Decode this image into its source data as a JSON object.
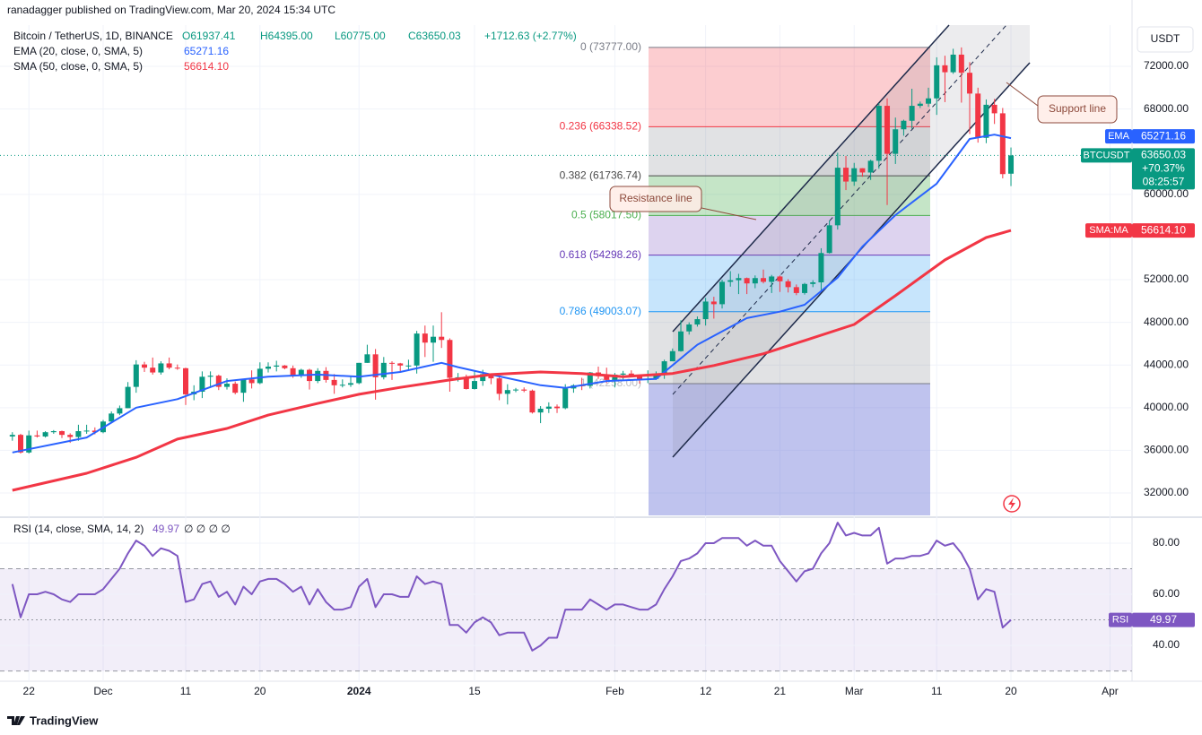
{
  "header": {
    "published": "ranadagger published on TradingView.com, Mar 20, 2024 15:34 UTC",
    "symbol": "Bitcoin / TetherUS, 1D, BINANCE",
    "open": "O61937.41",
    "high": "H64395.00",
    "low": "L60775.00",
    "close": "C63650.03",
    "change": "+1712.63 (+2.77%)",
    "ema_legend": "EMA (20, close, 0, SMA, 5)",
    "ema_value": "65271.16",
    "sma_legend": "SMA (50, close, 0, SMA, 5)",
    "sma_value": "56614.10",
    "rsi_legend": "RSI (14, close, SMA, 14, 2)",
    "rsi_value": "49.97",
    "rsi_extra": "∅ ∅ ∅ ∅"
  },
  "axis": {
    "currency": "USDT"
  },
  "tags": {
    "ema_value": "65271.16",
    "price_value": "63650.03",
    "price_change": "+70.37%",
    "countdown": "08:25:57",
    "sma_value": "56614.10",
    "rsi_value": "49.97"
  },
  "footer": "TradingView",
  "chart_data": [
    {
      "type": "candlestick",
      "name": "BTCUSDT",
      "up_color": "#089981",
      "down_color": "#f23645",
      "xlim": [
        -1.5,
        135.67
      ],
      "xticks": [
        {
          "value": 2,
          "label": "22"
        },
        {
          "value": 11,
          "label": "Dec"
        },
        {
          "value": 21,
          "label": "11"
        },
        {
          "value": 30,
          "label": "20"
        },
        {
          "value": 42,
          "label": "2024"
        },
        {
          "value": 56,
          "label": "15"
        },
        {
          "value": 73,
          "label": "Feb"
        },
        {
          "value": 84,
          "label": "12"
        },
        {
          "value": 93,
          "label": "21"
        },
        {
          "value": 102,
          "label": "Mar"
        },
        {
          "value": 112,
          "label": "11"
        },
        {
          "value": 121,
          "label": "20"
        },
        {
          "value": 133,
          "label": "Apr"
        }
      ],
      "ylim": [
        29900,
        75870
      ],
      "yticks": [
        {
          "value": 32000,
          "label": "32000.00"
        },
        {
          "value": 36000,
          "label": "36000.00"
        },
        {
          "value": 40000,
          "label": "40000.00"
        },
        {
          "value": 44000,
          "label": "44000.00"
        },
        {
          "value": 48000,
          "label": "48000.00"
        },
        {
          "value": 52000,
          "label": "52000.00"
        },
        {
          "value": 60000,
          "label": "60000.00"
        },
        {
          "value": 68000,
          "label": "68000.00"
        },
        {
          "value": 72000,
          "label": "72000.00"
        }
      ],
      "ohlc": [
        [
          37300,
          37700,
          36900,
          37450
        ],
        [
          37450,
          37550,
          35700,
          35800
        ],
        [
          35800,
          37850,
          35700,
          37400
        ],
        [
          37400,
          37850,
          37200,
          37300
        ],
        [
          37300,
          37800,
          37200,
          37700
        ],
        [
          37700,
          37900,
          37550,
          37800
        ],
        [
          37800,
          37850,
          37150,
          37450
        ],
        [
          37450,
          37600,
          36700,
          37250
        ],
        [
          37250,
          38400,
          36900,
          37800
        ],
        [
          37800,
          38400,
          37550,
          37850
        ],
        [
          37850,
          38150,
          37500,
          37700
        ],
        [
          37700,
          38850,
          37600,
          38700
        ],
        [
          38700,
          39650,
          38600,
          39450
        ],
        [
          39450,
          40200,
          39300,
          39950
        ],
        [
          39950,
          42400,
          39950,
          41950
        ],
        [
          41950,
          44450,
          41400,
          44050
        ],
        [
          44050,
          44300,
          43350,
          43750
        ],
        [
          43750,
          44700,
          43100,
          43300
        ],
        [
          43300,
          44350,
          43100,
          44150
        ],
        [
          44150,
          44700,
          43600,
          43750
        ],
        [
          43750,
          44050,
          43550,
          43700
        ],
        [
          43700,
          43750,
          40250,
          41250
        ],
        [
          41250,
          42100,
          40700,
          41500
        ],
        [
          41500,
          43400,
          40900,
          42900
        ],
        [
          42900,
          43400,
          41850,
          43000
        ],
        [
          43000,
          43100,
          41650,
          41950
        ],
        [
          41950,
          42750,
          41700,
          42250
        ],
        [
          42250,
          42450,
          41250,
          41400
        ],
        [
          41400,
          42700,
          40550,
          42650
        ],
        [
          42650,
          43500,
          41800,
          42300
        ],
        [
          42300,
          44250,
          42200,
          43650
        ],
        [
          43650,
          44250,
          43300,
          43850
        ],
        [
          43850,
          44400,
          43400,
          43950
        ],
        [
          43950,
          44000,
          43600,
          43700
        ],
        [
          43700,
          43950,
          42800,
          43000
        ],
        [
          43000,
          43650,
          42800,
          43550
        ],
        [
          43550,
          43650,
          41700,
          42500
        ],
        [
          42500,
          43700,
          42300,
          43450
        ],
        [
          43450,
          43800,
          42350,
          42600
        ],
        [
          42600,
          43150,
          41300,
          42100
        ],
        [
          42100,
          42650,
          41900,
          42150
        ],
        [
          42150,
          42900,
          41950,
          42300
        ],
        [
          42300,
          44200,
          42200,
          44200
        ],
        [
          44200,
          45900,
          44200,
          45000
        ],
        [
          45000,
          45500,
          40750,
          42850
        ],
        [
          42850,
          44750,
          42650,
          44200
        ],
        [
          44200,
          44350,
          42600,
          44150
        ],
        [
          44150,
          44200,
          43400,
          43950
        ],
        [
          43950,
          44500,
          43600,
          43950
        ],
        [
          43950,
          47200,
          43200,
          46950
        ],
        [
          46950,
          47700,
          44750,
          46100
        ],
        [
          46100,
          47700,
          44300,
          46650
        ],
        [
          46650,
          48950,
          45600,
          46350
        ],
        [
          46350,
          46500,
          41500,
          42800
        ],
        [
          42800,
          43250,
          42450,
          42850
        ],
        [
          42850,
          43100,
          41700,
          41750
        ],
        [
          41750,
          43400,
          41700,
          42500
        ],
        [
          42500,
          43550,
          42050,
          43150
        ],
        [
          43150,
          43200,
          42200,
          42750
        ],
        [
          42750,
          42950,
          40700,
          41300
        ],
        [
          41300,
          42200,
          40300,
          41650
        ],
        [
          41650,
          41850,
          41450,
          41700
        ],
        [
          41700,
          41900,
          41450,
          41600
        ],
        [
          41600,
          41700,
          39450,
          39550
        ],
        [
          39550,
          40150,
          38550,
          39900
        ],
        [
          39900,
          40500,
          39500,
          40100
        ],
        [
          40100,
          40300,
          39500,
          39950
        ],
        [
          39950,
          42200,
          39850,
          41800
        ],
        [
          41800,
          42200,
          41400,
          42100
        ],
        [
          42100,
          42800,
          41650,
          42050
        ],
        [
          42050,
          43350,
          41800,
          43300
        ],
        [
          43300,
          43850,
          42700,
          42950
        ],
        [
          42950,
          43750,
          42300,
          42600
        ],
        [
          42600,
          43250,
          41900,
          43100
        ],
        [
          43100,
          43450,
          42600,
          43200
        ],
        [
          43200,
          43500,
          42900,
          43000
        ],
        [
          43000,
          43100,
          42250,
          42600
        ],
        [
          42600,
          43500,
          42300,
          42700
        ],
        [
          42700,
          43400,
          42600,
          43100
        ],
        [
          43100,
          44500,
          42700,
          44350
        ],
        [
          44350,
          45550,
          44350,
          45300
        ],
        [
          45300,
          48200,
          45250,
          47150
        ],
        [
          47150,
          48000,
          46850,
          47800
        ],
        [
          47800,
          48550,
          47600,
          48300
        ],
        [
          48300,
          50300,
          47700,
          49950
        ],
        [
          49950,
          50400,
          48350,
          49700
        ],
        [
          49700,
          52000,
          49300,
          51800
        ],
        [
          51800,
          52800,
          51350,
          51950
        ],
        [
          51950,
          52550,
          50650,
          52150
        ],
        [
          52150,
          52200,
          50650,
          51650
        ],
        [
          51650,
          52400,
          51200,
          52150
        ],
        [
          52150,
          52950,
          51650,
          51800
        ],
        [
          51800,
          52450,
          50750,
          52300
        ],
        [
          52300,
          52400,
          50850,
          51850
        ],
        [
          51850,
          52050,
          50800,
          51300
        ],
        [
          51300,
          51550,
          50550,
          50750
        ],
        [
          50750,
          51700,
          50600,
          51600
        ],
        [
          51600,
          51950,
          51300,
          51750
        ],
        [
          51750,
          54950,
          50950,
          54500
        ],
        [
          54500,
          57550,
          54450,
          57100
        ],
        [
          57100,
          63900,
          56700,
          62500
        ],
        [
          62500,
          63600,
          60400,
          61200
        ],
        [
          61200,
          62950,
          60800,
          62450
        ],
        [
          62450,
          62450,
          61650,
          62050
        ],
        [
          62050,
          63250,
          61350,
          63150
        ],
        [
          63150,
          68550,
          62400,
          68300
        ],
        [
          68300,
          69000,
          59000,
          63800
        ],
        [
          63800,
          67200,
          62850,
          66100
        ],
        [
          66100,
          67000,
          65500,
          66900
        ],
        [
          66900,
          69900,
          66150,
          68300
        ],
        [
          68300,
          68700,
          68100,
          68500
        ],
        [
          68500,
          70000,
          68200,
          69000
        ],
        [
          69000,
          72850,
          67450,
          72100
        ],
        [
          72100,
          73000,
          68650,
          71450
        ],
        [
          71450,
          73650,
          71300,
          73100
        ],
        [
          73100,
          73777,
          68600,
          71400
        ],
        [
          71400,
          72400,
          65650,
          69450
        ],
        [
          69450,
          70000,
          64850,
          65300
        ],
        [
          65300,
          68900,
          64800,
          68400
        ],
        [
          68400,
          68950,
          66600,
          67600
        ],
        [
          67600,
          68100,
          61500,
          61900
        ],
        [
          61937.41,
          64395.0,
          60775.0,
          63650.03
        ]
      ],
      "series": [
        {
          "name": "EMA",
          "color": "#2962ff",
          "width": 2,
          "x": [
            0,
            9,
            15,
            20,
            26,
            31,
            37,
            42,
            47,
            52,
            54,
            58,
            64,
            67,
            72,
            78,
            83,
            89,
            93,
            96,
            100,
            103,
            107,
            112,
            116,
            119,
            121
          ],
          "values": [
            35800,
            37200,
            40000,
            40800,
            42500,
            42900,
            43100,
            42900,
            43350,
            44200,
            43800,
            43100,
            42100,
            41850,
            42500,
            42700,
            45900,
            48400,
            49000,
            49650,
            52200,
            55100,
            58050,
            61000,
            65200,
            65600,
            65271.16
          ]
        },
        {
          "name": "SMA:MA",
          "color": "#f23645",
          "width": 3,
          "x": [
            0,
            9,
            15,
            20,
            26,
            31,
            37,
            42,
            47,
            53,
            58,
            64,
            69,
            74,
            80,
            85,
            91,
            96,
            102,
            107,
            113,
            118,
            121
          ],
          "values": [
            32250,
            33850,
            35350,
            37050,
            38050,
            39300,
            40400,
            41250,
            41900,
            42600,
            43100,
            43350,
            43200,
            42900,
            43200,
            43950,
            45050,
            46300,
            47800,
            50500,
            53850,
            55950,
            56614.1
          ]
        }
      ],
      "fib": [
        {
          "label": "0 (73777.00)",
          "value": 73777,
          "color": "#787b86",
          "fill": "rgba(242,54,69,0.25)"
        },
        {
          "label": "0.236 (66338.52)",
          "value": 66338.52,
          "color": "#f23645",
          "fill": "rgba(120,123,134,0.22)"
        },
        {
          "label": "0.382 (61736.74)",
          "value": 61736.74,
          "color": "#4a4a4a",
          "fill": "rgba(76,175,80,0.32)"
        },
        {
          "label": "0.5 (58017.50)",
          "value": 58017.5,
          "color": "#4caf50",
          "fill": "rgba(149,117,205,0.32)"
        },
        {
          "label": "0.618 (54298.26)",
          "value": 54298.26,
          "color": "#673ab7",
          "fill": "rgba(33,150,243,0.25)"
        },
        {
          "label": "0.786 (49003.07)",
          "value": 49003.07,
          "color": "#2196f3",
          "fill": "rgba(120,123,134,0.22)"
        },
        {
          "label": "1 (42258.00)",
          "value": 42258,
          "color": "#787b86",
          "fill": "rgba(103,111,214,0.42)"
        }
      ],
      "annotations": [
        "Resistance line",
        "Support line"
      ]
    },
    {
      "type": "line",
      "xlim": [
        -1.5,
        135.67
      ],
      "ylim": [
        26,
        89.8
      ],
      "yticks": [
        {
          "value": 40,
          "label": "40.00"
        },
        {
          "value": 60,
          "label": "60.00"
        },
        {
          "value": 80,
          "label": "80.00"
        }
      ],
      "levels": [
        70,
        50,
        30
      ],
      "series": [
        {
          "name": "RSI",
          "color": "#7e57c2",
          "values": [
            64,
            51,
            60,
            60,
            61,
            60,
            58,
            57,
            60,
            60,
            60,
            62,
            66,
            70,
            76,
            81,
            79,
            75,
            78,
            77,
            75,
            57,
            58,
            64,
            65,
            59,
            61,
            56,
            63,
            60,
            65,
            66,
            66,
            64,
            61,
            63,
            56,
            62,
            57,
            54,
            54,
            55,
            63,
            66,
            55,
            60,
            60,
            59,
            59,
            67,
            64,
            65,
            64,
            48,
            48,
            45,
            49,
            51,
            49,
            44,
            45,
            45,
            45,
            38,
            40,
            43,
            43,
            54,
            54,
            54,
            58,
            56,
            54,
            56,
            56,
            55,
            54,
            54,
            56,
            62,
            67,
            73,
            74,
            76,
            80,
            80,
            82,
            82,
            82,
            79,
            81,
            79,
            79,
            73,
            69,
            65,
            69,
            70,
            76,
            80,
            88,
            83,
            84,
            83,
            83,
            86,
            72,
            74,
            74,
            75,
            75,
            76,
            81,
            79,
            80,
            76,
            70,
            58,
            62,
            61,
            47,
            49.97
          ]
        }
      ]
    }
  ]
}
